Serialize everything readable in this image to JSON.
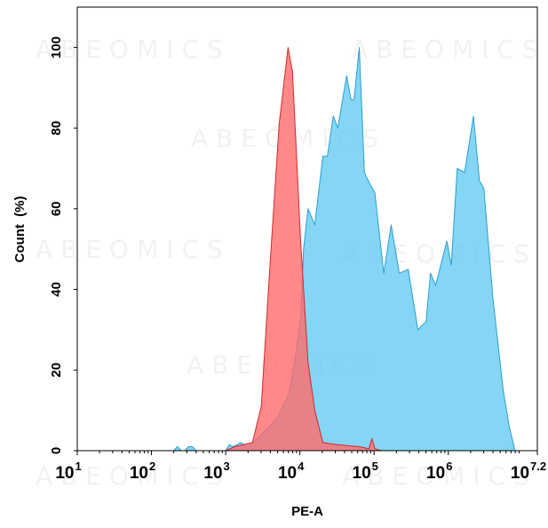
{
  "chart_data": {
    "type": "area",
    "title": "",
    "xlabel": "PE-A",
    "ylabel": "Count  (%)",
    "xscale": "log",
    "xlim_log10": [
      1,
      7.2
    ],
    "ylim": [
      0,
      110
    ],
    "x_ticks": [
      {
        "base": "10",
        "exp": "1",
        "value": 1
      },
      {
        "base": "10",
        "exp": "2",
        "value": 2
      },
      {
        "base": "10",
        "exp": "3",
        "value": 3
      },
      {
        "base": "10",
        "exp": "4",
        "value": 4
      },
      {
        "base": "10",
        "exp": "5",
        "value": 5
      },
      {
        "base": "10",
        "exp": "6",
        "value": 6
      },
      {
        "base": "10",
        "exp": "7.2",
        "value": 7.2
      }
    ],
    "y_ticks": [
      "0",
      "20",
      "40",
      "60",
      "80",
      "100"
    ],
    "grid": false,
    "legend": "none",
    "watermark": "ABEOMICS",
    "series": [
      {
        "color": "#5bc8f0",
        "stroke": "#2a9fcf",
        "log10_x": [
          2.3,
          2.35,
          2.4,
          2.45,
          2.5,
          2.55,
          2.6,
          2.65,
          3.0,
          3.05,
          3.1,
          3.2,
          3.3,
          3.48,
          3.69,
          3.85,
          3.93,
          4.01,
          4.05,
          4.11,
          4.2,
          4.31,
          4.37,
          4.45,
          4.51,
          4.63,
          4.69,
          4.73,
          4.8,
          4.87,
          4.92,
          5.01,
          5.13,
          5.23,
          5.34,
          5.46,
          5.59,
          5.7,
          5.76,
          5.83,
          5.98,
          6.04,
          6.12,
          6.22,
          6.34,
          6.42,
          6.48,
          6.6,
          6.74,
          6.82,
          6.9
        ],
        "count_pct": [
          0,
          1,
          0,
          0,
          1,
          1,
          0,
          0,
          0,
          1.5,
          1,
          2,
          1,
          4,
          8,
          14,
          22,
          33,
          50,
          60,
          56,
          73,
          73,
          83,
          80,
          93,
          87,
          87,
          100,
          69,
          67,
          64,
          44,
          56,
          44,
          45,
          30,
          32,
          44,
          41,
          52,
          46,
          70,
          69,
          83,
          67,
          65,
          38,
          15,
          6,
          0
        ]
      },
      {
        "color": "#ff6b6b",
        "stroke": "#d02a2a",
        "log10_x": [
          3.0,
          3.12,
          3.36,
          3.48,
          3.59,
          3.72,
          3.84,
          3.9,
          4.01,
          4.11,
          4.2,
          4.31,
          4.5,
          4.8,
          4.93,
          4.97,
          5.01,
          5.1,
          5.3
        ],
        "count_pct": [
          0,
          1,
          2,
          11,
          44,
          81,
          100,
          94,
          52,
          22,
          10,
          2,
          1.5,
          1,
          0.5,
          3,
          0.5,
          0,
          0
        ]
      }
    ]
  }
}
